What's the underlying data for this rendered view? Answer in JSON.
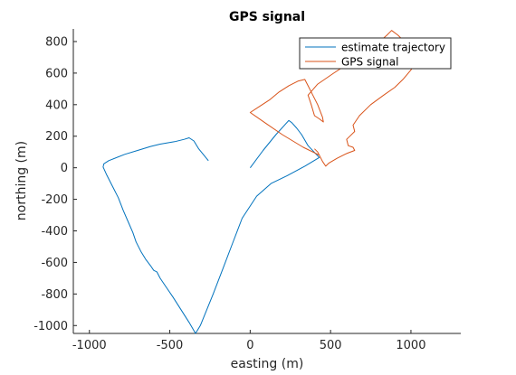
{
  "chart_data": {
    "type": "line",
    "title": "GPS signal",
    "xlabel": "easting (m)",
    "ylabel": "northing (m)",
    "xlim": [
      -1100,
      1310
    ],
    "ylim": [
      -1050,
      880
    ],
    "xticks": [
      -1000,
      -500,
      0,
      500,
      1000
    ],
    "xtick_labels": [
      "-1000",
      "-500",
      "0",
      "500",
      "1000"
    ],
    "yticks": [
      -1000,
      -800,
      -600,
      -400,
      -200,
      0,
      200,
      400,
      600,
      800
    ],
    "ytick_labels": [
      "-1000",
      "-800",
      "-600",
      "-400",
      "-200",
      "0",
      "200",
      "400",
      "600",
      "800"
    ],
    "grid": false,
    "legend_position": "top-right",
    "series": [
      {
        "name": "estimate trajectory",
        "color": "#0072BD",
        "points": [
          [
            -260,
            45
          ],
          [
            -320,
            120
          ],
          [
            -350,
            170
          ],
          [
            -380,
            190
          ],
          [
            -410,
            180
          ],
          [
            -470,
            165
          ],
          [
            -560,
            150
          ],
          [
            -620,
            135
          ],
          [
            -700,
            110
          ],
          [
            -780,
            85
          ],
          [
            -880,
            45
          ],
          [
            -910,
            25
          ],
          [
            -915,
            5
          ],
          [
            -895,
            -40
          ],
          [
            -860,
            -110
          ],
          [
            -820,
            -190
          ],
          [
            -790,
            -270
          ],
          [
            -760,
            -340
          ],
          [
            -730,
            -410
          ],
          [
            -710,
            -470
          ],
          [
            -680,
            -530
          ],
          [
            -650,
            -580
          ],
          [
            -620,
            -620
          ],
          [
            -600,
            -650
          ],
          [
            -580,
            -660
          ],
          [
            -560,
            -700
          ],
          [
            -520,
            -760
          ],
          [
            -480,
            -820
          ],
          [
            -430,
            -900
          ],
          [
            -380,
            -980
          ],
          [
            -340,
            -1050
          ],
          [
            -310,
            -1000
          ],
          [
            -270,
            -900
          ],
          [
            -230,
            -800
          ],
          [
            -170,
            -640
          ],
          [
            -110,
            -480
          ],
          [
            -50,
            -320
          ],
          [
            40,
            -180
          ],
          [
            130,
            -100
          ],
          [
            230,
            -50
          ],
          [
            340,
            10
          ],
          [
            430,
            65
          ],
          [
            360,
            140
          ],
          [
            320,
            210
          ],
          [
            290,
            250
          ],
          [
            260,
            285
          ],
          [
            240,
            300
          ],
          [
            160,
            210
          ],
          [
            80,
            110
          ],
          [
            0,
            0
          ]
        ]
      },
      {
        "name": "GPS signal",
        "color": "#D95319",
        "points": [
          [
            430,
            80
          ],
          [
            330,
            130
          ],
          [
            200,
            210
          ],
          [
            100,
            280
          ],
          [
            0,
            350
          ],
          [
            60,
            390
          ],
          [
            120,
            430
          ],
          [
            180,
            480
          ],
          [
            240,
            520
          ],
          [
            300,
            550
          ],
          [
            340,
            560
          ],
          [
            360,
            520
          ],
          [
            380,
            480
          ],
          [
            420,
            400
          ],
          [
            450,
            320
          ],
          [
            455,
            290
          ],
          [
            430,
            310
          ],
          [
            400,
            330
          ],
          [
            380,
            400
          ],
          [
            360,
            460
          ],
          [
            420,
            530
          ],
          [
            520,
            600
          ],
          [
            640,
            680
          ],
          [
            760,
            760
          ],
          [
            850,
            840
          ],
          [
            880,
            870
          ],
          [
            920,
            840
          ],
          [
            1000,
            760
          ],
          [
            1050,
            690
          ],
          [
            1000,
            620
          ],
          [
            950,
            560
          ],
          [
            900,
            510
          ],
          [
            830,
            460
          ],
          [
            750,
            400
          ],
          [
            680,
            330
          ],
          [
            640,
            270
          ],
          [
            650,
            230
          ],
          [
            620,
            200
          ],
          [
            600,
            180
          ],
          [
            610,
            140
          ],
          [
            640,
            130
          ],
          [
            650,
            110
          ],
          [
            600,
            90
          ],
          [
            540,
            60
          ],
          [
            490,
            30
          ],
          [
            470,
            10
          ],
          [
            450,
            40
          ],
          [
            420,
            100
          ],
          [
            400,
            120
          ]
        ]
      }
    ]
  }
}
